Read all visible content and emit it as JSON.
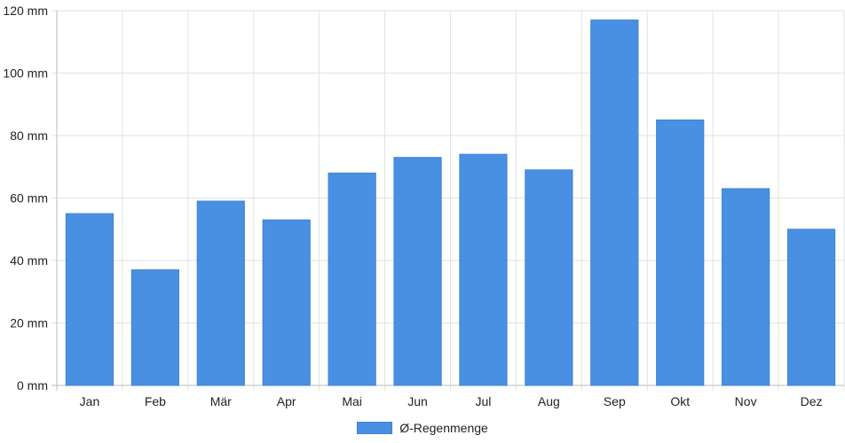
{
  "chart_data": {
    "type": "bar",
    "categories": [
      "Jan",
      "Feb",
      "Mär",
      "Apr",
      "Mai",
      "Jun",
      "Jul",
      "Aug",
      "Sep",
      "Okt",
      "Nov",
      "Dez"
    ],
    "series": [
      {
        "name": "Ø-Regenmenge",
        "values": [
          55,
          37,
          59,
          53,
          68,
          73,
          74,
          69,
          117,
          85,
          63,
          50
        ],
        "color": "#4a90e2"
      }
    ],
    "y_ticks": [
      "0 mm",
      "20 mm",
      "40 mm",
      "60 mm",
      "80 mm",
      "100 mm",
      "120 mm"
    ],
    "ylim": [
      0,
      120
    ],
    "y_unit": "mm",
    "grid": true,
    "legend_position": "bottom-center",
    "title": "",
    "xlabel": "",
    "ylabel": ""
  }
}
